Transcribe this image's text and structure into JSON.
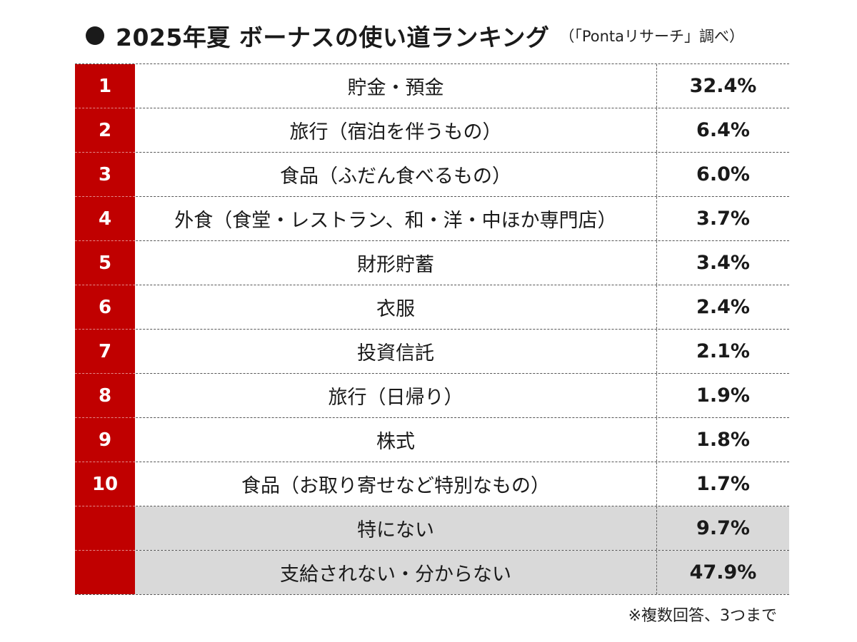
{
  "header": {
    "bullet_icon": "filled-circle-icon",
    "title": "2025年夏 ボーナスの使い道ランキング",
    "source": "（「Pontaリサーチ」調べ）"
  },
  "colors": {
    "rank_column": "#c00000",
    "highlight_row": "#d9d9d9"
  },
  "chart_data": {
    "type": "table",
    "title": "2025年夏 ボーナスの使い道ランキング",
    "source": "（「Pontaリサーチ」調べ）",
    "rows": [
      {
        "rank": "1",
        "item": "貯金・預金",
        "value": "32.4%"
      },
      {
        "rank": "2",
        "item": "旅行（宿泊を伴うもの）",
        "value": "6.4%"
      },
      {
        "rank": "3",
        "item": "食品（ふだん食べるもの）",
        "value": "6.0%"
      },
      {
        "rank": "4",
        "item": "外食（食堂・レストラン、和・洋・中ほか専門店）",
        "value": "3.7%"
      },
      {
        "rank": "5",
        "item": "財形貯蓄",
        "value": "3.4%"
      },
      {
        "rank": "6",
        "item": "衣服",
        "value": "2.4%"
      },
      {
        "rank": "7",
        "item": "投資信託",
        "value": "2.1%"
      },
      {
        "rank": "8",
        "item": "旅行（日帰り）",
        "value": "1.9%"
      },
      {
        "rank": "9",
        "item": "株式",
        "value": "1.8%"
      },
      {
        "rank": "10",
        "item": "食品（お取り寄せなど特別なもの）",
        "value": "1.7%"
      },
      {
        "rank": "",
        "item": "特にない",
        "value": "9.7%",
        "highlight": true
      },
      {
        "rank": "",
        "item": "支給されない・分からない",
        "value": "47.9%",
        "highlight": true
      }
    ],
    "note": "※複数回答、3つまで"
  }
}
